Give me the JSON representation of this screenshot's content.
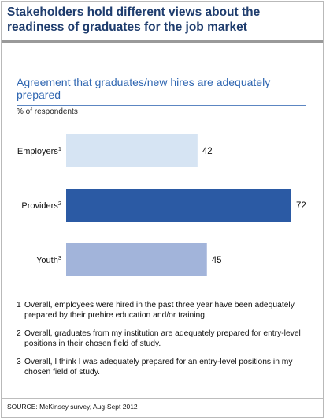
{
  "title": "Stakeholders hold different views about the readiness of graduates for the job market",
  "chart_data": {
    "type": "bar",
    "orientation": "horizontal",
    "subtitle": "Agreement that graduates/new hires are adequately prepared",
    "unit_label": "% of respondents",
    "categories": [
      {
        "name": "Employers",
        "sup": "1"
      },
      {
        "name": "Providers",
        "sup": "2"
      },
      {
        "name": "Youth",
        "sup": "3"
      }
    ],
    "values": [
      42,
      72,
      45
    ],
    "colors": [
      "#d6e4f3",
      "#2b5aa4",
      "#a2b4da"
    ],
    "xlim": [
      0,
      72
    ],
    "grid": false,
    "legend": "none"
  },
  "footnotes": [
    {
      "num": "1",
      "text": "Overall, employees were hired in the past three year have been adequately prepared by their prehire education and/or training."
    },
    {
      "num": "2",
      "text": "Overall, graduates from my institution are adequately prepared for entry-level positions in their chosen field of study."
    },
    {
      "num": "3",
      "text": "Overall, I think I was adequately prepared for an entry-level positions in my chosen field of study."
    }
  ],
  "source": "SOURCE: McKinsey survey, Aug-Sept 2012"
}
